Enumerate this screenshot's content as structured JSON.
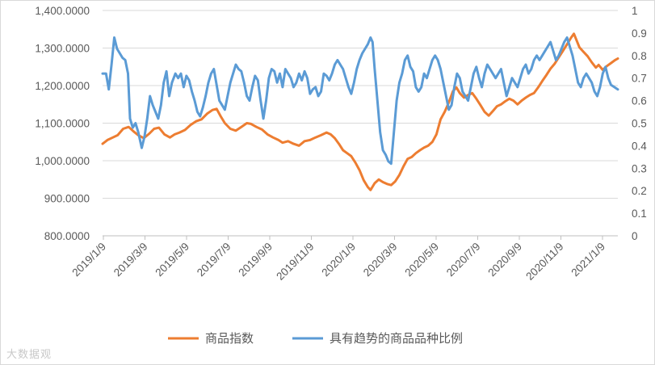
{
  "chart_data": {
    "type": "line",
    "title": "",
    "left_axis": {
      "ylim": [
        800,
        1400
      ],
      "tick_values": [
        800,
        900,
        1000,
        1100,
        1200,
        1300,
        1400
      ],
      "tick_labels": [
        "800.0000",
        "900.0000",
        "1,000.0000",
        "1,100.0000",
        "1,200.0000",
        "1,300.0000",
        "1,400.0000"
      ]
    },
    "right_axis": {
      "ylim": [
        0,
        1
      ],
      "tick_values": [
        0,
        0.1,
        0.2,
        0.3,
        0.4,
        0.5,
        0.6,
        0.7,
        0.8,
        0.9,
        1
      ],
      "tick_labels": [
        "0",
        "0.1",
        "0.2",
        "0.3",
        "0.4",
        "0.5",
        "0.6",
        "0.7",
        "0.8",
        "0.9",
        "1"
      ]
    },
    "x_axis": {
      "categories": [
        "2019/1/9",
        "2019/3/9",
        "2019/5/9",
        "2019/7/9",
        "2019/9/9",
        "2019/11/9",
        "2020/1/9",
        "2020/3/9",
        "2020/5/9",
        "2020/7/9",
        "2020/9/9",
        "2020/11/9",
        "2021/1/9"
      ],
      "range_days": [
        0,
        750
      ]
    },
    "series": [
      {
        "name": "商品指数",
        "axis": "left",
        "color": "#ED7D31",
        "points": [
          [
            0,
            1045
          ],
          [
            7,
            1055
          ],
          [
            15,
            1062
          ],
          [
            22,
            1068
          ],
          [
            30,
            1085
          ],
          [
            38,
            1090
          ],
          [
            45,
            1078
          ],
          [
            52,
            1068
          ],
          [
            60,
            1060
          ],
          [
            68,
            1072
          ],
          [
            75,
            1085
          ],
          [
            82,
            1088
          ],
          [
            90,
            1070
          ],
          [
            98,
            1062
          ],
          [
            105,
            1070
          ],
          [
            112,
            1075
          ],
          [
            120,
            1082
          ],
          [
            128,
            1095
          ],
          [
            136,
            1105
          ],
          [
            144,
            1110
          ],
          [
            152,
            1125
          ],
          [
            160,
            1135
          ],
          [
            166,
            1138
          ],
          [
            172,
            1118
          ],
          [
            178,
            1100
          ],
          [
            186,
            1085
          ],
          [
            194,
            1080
          ],
          [
            202,
            1090
          ],
          [
            210,
            1100
          ],
          [
            216,
            1098
          ],
          [
            224,
            1090
          ],
          [
            232,
            1083
          ],
          [
            240,
            1070
          ],
          [
            248,
            1062
          ],
          [
            256,
            1055
          ],
          [
            262,
            1048
          ],
          [
            270,
            1052
          ],
          [
            278,
            1045
          ],
          [
            286,
            1040
          ],
          [
            294,
            1052
          ],
          [
            302,
            1055
          ],
          [
            310,
            1062
          ],
          [
            318,
            1068
          ],
          [
            326,
            1075
          ],
          [
            332,
            1070
          ],
          [
            338,
            1060
          ],
          [
            344,
            1045
          ],
          [
            350,
            1028
          ],
          [
            356,
            1020
          ],
          [
            362,
            1012
          ],
          [
            368,
            995
          ],
          [
            374,
            975
          ],
          [
            380,
            948
          ],
          [
            386,
            930
          ],
          [
            390,
            922
          ],
          [
            396,
            940
          ],
          [
            402,
            950
          ],
          [
            408,
            943
          ],
          [
            414,
            938
          ],
          [
            420,
            935
          ],
          [
            426,
            945
          ],
          [
            432,
            962
          ],
          [
            438,
            985
          ],
          [
            444,
            1005
          ],
          [
            450,
            1010
          ],
          [
            456,
            1020
          ],
          [
            462,
            1028
          ],
          [
            468,
            1035
          ],
          [
            474,
            1040
          ],
          [
            480,
            1050
          ],
          [
            486,
            1070
          ],
          [
            492,
            1110
          ],
          [
            498,
            1130
          ],
          [
            504,
            1155
          ],
          [
            510,
            1185
          ],
          [
            515,
            1195
          ],
          [
            520,
            1180
          ],
          [
            526,
            1168
          ],
          [
            532,
            1175
          ],
          [
            538,
            1180
          ],
          [
            544,
            1165
          ],
          [
            550,
            1148
          ],
          [
            556,
            1130
          ],
          [
            562,
            1120
          ],
          [
            568,
            1132
          ],
          [
            574,
            1145
          ],
          [
            580,
            1150
          ],
          [
            586,
            1158
          ],
          [
            592,
            1165
          ],
          [
            598,
            1160
          ],
          [
            604,
            1150
          ],
          [
            610,
            1160
          ],
          [
            616,
            1168
          ],
          [
            622,
            1175
          ],
          [
            628,
            1180
          ],
          [
            634,
            1195
          ],
          [
            640,
            1212
          ],
          [
            646,
            1228
          ],
          [
            652,
            1245
          ],
          [
            658,
            1258
          ],
          [
            664,
            1275
          ],
          [
            670,
            1292
          ],
          [
            676,
            1310
          ],
          [
            682,
            1328
          ],
          [
            686,
            1338
          ],
          [
            690,
            1320
          ],
          [
            694,
            1302
          ],
          [
            700,
            1290
          ],
          [
            706,
            1278
          ],
          [
            712,
            1262
          ],
          [
            718,
            1248
          ],
          [
            722,
            1255
          ],
          [
            728,
            1242
          ],
          [
            734,
            1252
          ],
          [
            740,
            1260
          ],
          [
            746,
            1268
          ],
          [
            750,
            1272
          ]
        ]
      },
      {
        "name": "具有趋势的商品品种比例",
        "axis": "right",
        "color": "#5B9BD5",
        "points": [
          [
            0,
            0.72
          ],
          [
            5,
            0.72
          ],
          [
            9,
            0.65
          ],
          [
            13,
            0.76
          ],
          [
            17,
            0.88
          ],
          [
            21,
            0.83
          ],
          [
            25,
            0.81
          ],
          [
            29,
            0.79
          ],
          [
            33,
            0.78
          ],
          [
            37,
            0.72
          ],
          [
            40,
            0.52
          ],
          [
            44,
            0.48
          ],
          [
            48,
            0.5
          ],
          [
            52,
            0.46
          ],
          [
            57,
            0.39
          ],
          [
            61,
            0.44
          ],
          [
            65,
            0.52
          ],
          [
            69,
            0.62
          ],
          [
            73,
            0.58
          ],
          [
            77,
            0.55
          ],
          [
            81,
            0.52
          ],
          [
            85,
            0.58
          ],
          [
            89,
            0.68
          ],
          [
            93,
            0.73
          ],
          [
            97,
            0.62
          ],
          [
            101,
            0.68
          ],
          [
            106,
            0.72
          ],
          [
            110,
            0.7
          ],
          [
            114,
            0.72
          ],
          [
            118,
            0.66
          ],
          [
            122,
            0.71
          ],
          [
            126,
            0.69
          ],
          [
            130,
            0.64
          ],
          [
            134,
            0.6
          ],
          [
            138,
            0.55
          ],
          [
            142,
            0.53
          ],
          [
            146,
            0.57
          ],
          [
            150,
            0.62
          ],
          [
            154,
            0.68
          ],
          [
            158,
            0.72
          ],
          [
            162,
            0.74
          ],
          [
            166,
            0.67
          ],
          [
            170,
            0.6
          ],
          [
            174,
            0.58
          ],
          [
            178,
            0.56
          ],
          [
            182,
            0.62
          ],
          [
            186,
            0.68
          ],
          [
            190,
            0.72
          ],
          [
            194,
            0.76
          ],
          [
            198,
            0.74
          ],
          [
            202,
            0.73
          ],
          [
            206,
            0.68
          ],
          [
            210,
            0.62
          ],
          [
            214,
            0.6
          ],
          [
            218,
            0.66
          ],
          [
            222,
            0.71
          ],
          [
            226,
            0.69
          ],
          [
            230,
            0.6
          ],
          [
            234,
            0.52
          ],
          [
            238,
            0.6
          ],
          [
            242,
            0.7
          ],
          [
            246,
            0.74
          ],
          [
            250,
            0.73
          ],
          [
            254,
            0.68
          ],
          [
            258,
            0.72
          ],
          [
            262,
            0.66
          ],
          [
            266,
            0.74
          ],
          [
            270,
            0.72
          ],
          [
            274,
            0.7
          ],
          [
            278,
            0.66
          ],
          [
            282,
            0.68
          ],
          [
            286,
            0.72
          ],
          [
            290,
            0.69
          ],
          [
            294,
            0.73
          ],
          [
            298,
            0.7
          ],
          [
            302,
            0.63
          ],
          [
            306,
            0.65
          ],
          [
            310,
            0.66
          ],
          [
            314,
            0.62
          ],
          [
            318,
            0.64
          ],
          [
            322,
            0.72
          ],
          [
            326,
            0.71
          ],
          [
            330,
            0.69
          ],
          [
            334,
            0.72
          ],
          [
            338,
            0.76
          ],
          [
            342,
            0.78
          ],
          [
            346,
            0.76
          ],
          [
            350,
            0.74
          ],
          [
            354,
            0.7
          ],
          [
            358,
            0.66
          ],
          [
            362,
            0.63
          ],
          [
            366,
            0.68
          ],
          [
            370,
            0.74
          ],
          [
            374,
            0.78
          ],
          [
            378,
            0.81
          ],
          [
            382,
            0.83
          ],
          [
            386,
            0.85
          ],
          [
            390,
            0.88
          ],
          [
            393,
            0.86
          ],
          [
            396,
            0.74
          ],
          [
            400,
            0.6
          ],
          [
            404,
            0.46
          ],
          [
            408,
            0.38
          ],
          [
            412,
            0.36
          ],
          [
            416,
            0.33
          ],
          [
            420,
            0.32
          ],
          [
            424,
            0.46
          ],
          [
            428,
            0.6
          ],
          [
            432,
            0.68
          ],
          [
            436,
            0.72
          ],
          [
            440,
            0.78
          ],
          [
            444,
            0.8
          ],
          [
            448,
            0.75
          ],
          [
            452,
            0.73
          ],
          [
            456,
            0.66
          ],
          [
            460,
            0.64
          ],
          [
            464,
            0.66
          ],
          [
            468,
            0.72
          ],
          [
            472,
            0.7
          ],
          [
            476,
            0.74
          ],
          [
            480,
            0.78
          ],
          [
            484,
            0.8
          ],
          [
            488,
            0.78
          ],
          [
            492,
            0.74
          ],
          [
            496,
            0.68
          ],
          [
            500,
            0.62
          ],
          [
            504,
            0.56
          ],
          [
            508,
            0.58
          ],
          [
            512,
            0.66
          ],
          [
            516,
            0.72
          ],
          [
            520,
            0.7
          ],
          [
            524,
            0.64
          ],
          [
            528,
            0.62
          ],
          [
            532,
            0.6
          ],
          [
            536,
            0.66
          ],
          [
            540,
            0.72
          ],
          [
            544,
            0.75
          ],
          [
            548,
            0.7
          ],
          [
            552,
            0.66
          ],
          [
            556,
            0.72
          ],
          [
            560,
            0.76
          ],
          [
            564,
            0.74
          ],
          [
            568,
            0.72
          ],
          [
            572,
            0.7
          ],
          [
            576,
            0.72
          ],
          [
            580,
            0.74
          ],
          [
            584,
            0.68
          ],
          [
            588,
            0.62
          ],
          [
            592,
            0.66
          ],
          [
            596,
            0.7
          ],
          [
            600,
            0.68
          ],
          [
            604,
            0.66
          ],
          [
            608,
            0.7
          ],
          [
            612,
            0.74
          ],
          [
            616,
            0.76
          ],
          [
            620,
            0.72
          ],
          [
            624,
            0.74
          ],
          [
            628,
            0.78
          ],
          [
            632,
            0.8
          ],
          [
            636,
            0.78
          ],
          [
            640,
            0.8
          ],
          [
            644,
            0.82
          ],
          [
            648,
            0.84
          ],
          [
            652,
            0.86
          ],
          [
            656,
            0.82
          ],
          [
            660,
            0.78
          ],
          [
            664,
            0.8
          ],
          [
            668,
            0.83
          ],
          [
            672,
            0.86
          ],
          [
            676,
            0.88
          ],
          [
            680,
            0.84
          ],
          [
            684,
            0.8
          ],
          [
            688,
            0.74
          ],
          [
            692,
            0.68
          ],
          [
            696,
            0.66
          ],
          [
            700,
            0.7
          ],
          [
            704,
            0.72
          ],
          [
            708,
            0.7
          ],
          [
            712,
            0.68
          ],
          [
            716,
            0.64
          ],
          [
            720,
            0.62
          ],
          [
            724,
            0.66
          ],
          [
            728,
            0.72
          ],
          [
            732,
            0.75
          ],
          [
            736,
            0.7
          ],
          [
            740,
            0.67
          ],
          [
            745,
            0.66
          ],
          [
            750,
            0.65
          ]
        ]
      }
    ],
    "legend": {
      "position": "bottom",
      "entries": [
        "商品指数",
        "具有趋势的商品品种比例"
      ]
    }
  },
  "watermark": "大数据观"
}
